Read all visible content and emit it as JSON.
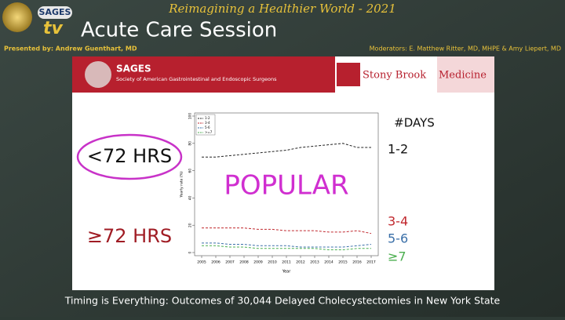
{
  "header": {
    "logo_text": "SAGES",
    "logo_sub": "tv",
    "event": "Reimagining a Healthier World - 2021",
    "session": "Acute Care Session",
    "presenter": "Presented by: Andrew Guenthart, MD",
    "moderators": "Moderators: E. Matthew Ritter, MD, MHPE & Amy Liepert, MD"
  },
  "slide": {
    "org": "SAGES",
    "org_full": "Society of American Gastrointestinal and Endoscopic Surgeons",
    "partner": "Stony Brook",
    "partner_dept": "Medicine",
    "early_label": "<72 HRS",
    "late_label": "≥72 HRS",
    "overlay": "POPULAR",
    "days_title": "#DAYS",
    "days": [
      "1-2",
      "3-4",
      "5-6",
      "≥7"
    ]
  },
  "chart_data": {
    "type": "line",
    "x_label": "Year",
    "y_label": "Yearly rate (%)",
    "x": [
      2005,
      2006,
      2007,
      2008,
      2009,
      2010,
      2011,
      2012,
      2013,
      2014,
      2015,
      2016,
      2017
    ],
    "series": [
      {
        "name": "1-2",
        "color": "#222222",
        "values": [
          70,
          70,
          71,
          72,
          73,
          74,
          75,
          77,
          78,
          79,
          80,
          77,
          77
        ]
      },
      {
        "name": "3-4",
        "color": "#c0272d",
        "values": [
          18,
          18,
          18,
          18,
          17,
          17,
          16,
          16,
          16,
          15,
          15,
          16,
          14
        ]
      },
      {
        "name": "5-6",
        "color": "#3a6fa8",
        "values": [
          7,
          7,
          6,
          6,
          5,
          5,
          5,
          4,
          4,
          4,
          4,
          5,
          6
        ]
      },
      {
        "name": ">=7",
        "color": "#4caf50",
        "values": [
          5,
          5,
          4,
          4,
          3,
          3,
          3,
          3,
          3,
          2,
          2,
          3,
          3
        ]
      }
    ],
    "xlim": [
      2004.5,
      2017.5
    ],
    "xticks": [
      2005,
      2006,
      2007,
      2008,
      2009,
      2010,
      2011,
      2012,
      2013,
      2014,
      2015,
      2016,
      2017
    ],
    "ylim": [
      0,
      100
    ],
    "yticks": [
      0,
      20,
      40,
      60,
      80,
      100
    ],
    "legend": "top-left"
  },
  "caption": "Timing is Everything: Outcomes of 30,044 Delayed Cholecystectomies in New York State"
}
